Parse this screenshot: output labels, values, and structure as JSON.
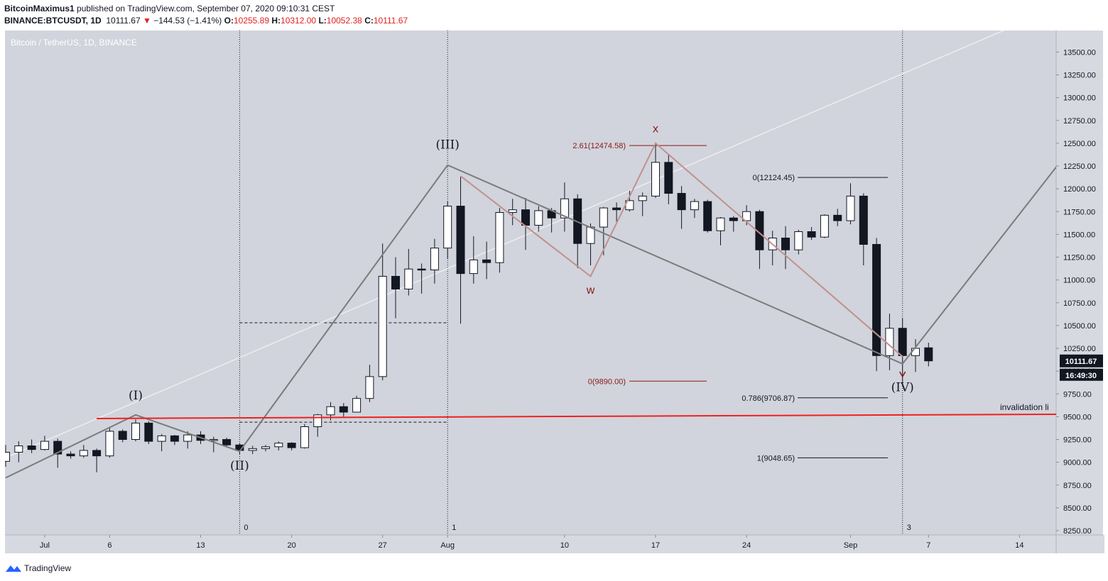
{
  "header": {
    "author": "BitcoinMaximus1",
    "published_text": "published on TradingView.com, September 07, 2020 09:10:31 CEST",
    "symbol": "BINANCE:BTCUSDT, 1D",
    "last": "10111.67",
    "change": "−144.53 (−1.41%)",
    "change_arrow": "▼",
    "o_label": "O:",
    "open": "10255.89",
    "h_label": "H:",
    "high": "10312.00",
    "l_label": "L:",
    "low": "10052.38",
    "c_label": "C:",
    "close": "10111.67"
  },
  "footer": {
    "brand": "TradingView",
    "icon": "tradingview-logo-icon"
  },
  "colors": {
    "plot_bg": "#d1d4dc",
    "candle_up": "#ffffff",
    "candle_down": "#131722",
    "wave_gray": "#7b7b7b",
    "wave_red": "#c0918f",
    "fib_red": "#8b1818",
    "invalidation_red": "#f02020",
    "last_price_bg": "#131722"
  },
  "chart_data": {
    "type": "candlestick",
    "title": "Bitcoin / TetherUS, 1D, BINANCE",
    "start_date": "2020-06-28",
    "ylim": [
      8250,
      13700
    ],
    "y_ticks": [
      "13500.00",
      "13250.00",
      "13000.00",
      "12750.00",
      "12500.00",
      "12250.00",
      "12000.00",
      "11750.00",
      "11500.00",
      "11250.00",
      "11000.00",
      "10750.00",
      "10500.00",
      "10250.00",
      "10000.00",
      "9750.00",
      "9500.00",
      "9250.00",
      "9000.00",
      "8750.00",
      "8500.00",
      "8250.00"
    ],
    "x_ticks": [
      {
        "label": "Jul",
        "date": "2020-07-01"
      },
      {
        "label": "6",
        "date": "2020-07-06"
      },
      {
        "label": "13",
        "date": "2020-07-13"
      },
      {
        "label": "20",
        "date": "2020-07-20"
      },
      {
        "label": "27",
        "date": "2020-07-27"
      },
      {
        "label": "Aug",
        "date": "2020-08-01"
      },
      {
        "label": "10",
        "date": "2020-08-10"
      },
      {
        "label": "17",
        "date": "2020-08-17"
      },
      {
        "label": "24",
        "date": "2020-08-24"
      },
      {
        "label": "Sep",
        "date": "2020-09-01"
      },
      {
        "label": "7",
        "date": "2020-09-07"
      },
      {
        "label": "14",
        "date": "2020-09-14"
      }
    ],
    "candles": [
      {
        "date": "2020-06-28",
        "o": 9010,
        "h": 9190,
        "l": 8950,
        "c": 9110
      },
      {
        "date": "2020-06-29",
        "o": 9110,
        "h": 9230,
        "l": 9000,
        "c": 9180
      },
      {
        "date": "2020-06-30",
        "o": 9180,
        "h": 9250,
        "l": 9100,
        "c": 9140
      },
      {
        "date": "2020-07-01",
        "o": 9140,
        "h": 9290,
        "l": 9130,
        "c": 9230
      },
      {
        "date": "2020-07-02",
        "o": 9230,
        "h": 9260,
        "l": 8940,
        "c": 9090
      },
      {
        "date": "2020-07-03",
        "o": 9090,
        "h": 9120,
        "l": 9040,
        "c": 9070
      },
      {
        "date": "2020-07-04",
        "o": 9070,
        "h": 9190,
        "l": 9050,
        "c": 9130
      },
      {
        "date": "2020-07-05",
        "o": 9130,
        "h": 9150,
        "l": 8890,
        "c": 9070
      },
      {
        "date": "2020-07-06",
        "o": 9070,
        "h": 9380,
        "l": 9050,
        "c": 9340
      },
      {
        "date": "2020-07-07",
        "o": 9340,
        "h": 9360,
        "l": 9220,
        "c": 9250
      },
      {
        "date": "2020-07-08",
        "o": 9250,
        "h": 9470,
        "l": 9230,
        "c": 9430
      },
      {
        "date": "2020-07-09",
        "o": 9430,
        "h": 9450,
        "l": 9200,
        "c": 9230
      },
      {
        "date": "2020-07-10",
        "o": 9230,
        "h": 9310,
        "l": 9120,
        "c": 9290
      },
      {
        "date": "2020-07-11",
        "o": 9290,
        "h": 9300,
        "l": 9190,
        "c": 9230
      },
      {
        "date": "2020-07-12",
        "o": 9230,
        "h": 9340,
        "l": 9150,
        "c": 9300
      },
      {
        "date": "2020-07-13",
        "o": 9300,
        "h": 9340,
        "l": 9200,
        "c": 9240
      },
      {
        "date": "2020-07-14",
        "o": 9240,
        "h": 9280,
        "l": 9110,
        "c": 9250
      },
      {
        "date": "2020-07-15",
        "o": 9250,
        "h": 9270,
        "l": 9170,
        "c": 9190
      },
      {
        "date": "2020-07-16",
        "o": 9190,
        "h": 9210,
        "l": 9090,
        "c": 9130
      },
      {
        "date": "2020-07-17",
        "o": 9130,
        "h": 9180,
        "l": 9090,
        "c": 9150
      },
      {
        "date": "2020-07-18",
        "o": 9150,
        "h": 9190,
        "l": 9120,
        "c": 9170
      },
      {
        "date": "2020-07-19",
        "o": 9170,
        "h": 9230,
        "l": 9130,
        "c": 9210
      },
      {
        "date": "2020-07-20",
        "o": 9210,
        "h": 9220,
        "l": 9130,
        "c": 9160
      },
      {
        "date": "2020-07-21",
        "o": 9160,
        "h": 9420,
        "l": 9150,
        "c": 9390
      },
      {
        "date": "2020-07-22",
        "o": 9390,
        "h": 9530,
        "l": 9280,
        "c": 9520
      },
      {
        "date": "2020-07-23",
        "o": 9520,
        "h": 9660,
        "l": 9460,
        "c": 9610
      },
      {
        "date": "2020-07-24",
        "o": 9610,
        "h": 9650,
        "l": 9500,
        "c": 9550
      },
      {
        "date": "2020-07-25",
        "o": 9550,
        "h": 9730,
        "l": 9550,
        "c": 9700
      },
      {
        "date": "2020-07-26",
        "o": 9700,
        "h": 10070,
        "l": 9660,
        "c": 9940
      },
      {
        "date": "2020-07-27",
        "o": 9940,
        "h": 11400,
        "l": 9900,
        "c": 11040
      },
      {
        "date": "2020-07-28",
        "o": 11040,
        "h": 11250,
        "l": 10580,
        "c": 10900
      },
      {
        "date": "2020-07-29",
        "o": 10900,
        "h": 11340,
        "l": 10830,
        "c": 11120
      },
      {
        "date": "2020-07-30",
        "o": 11120,
        "h": 11180,
        "l": 10850,
        "c": 11110
      },
      {
        "date": "2020-07-31",
        "o": 11110,
        "h": 11450,
        "l": 10960,
        "c": 11350
      },
      {
        "date": "2020-08-01",
        "o": 11350,
        "h": 11860,
        "l": 11230,
        "c": 11810
      },
      {
        "date": "2020-08-02",
        "o": 11810,
        "h": 12130,
        "l": 10520,
        "c": 11070
      },
      {
        "date": "2020-08-03",
        "o": 11070,
        "h": 11480,
        "l": 10960,
        "c": 11220
      },
      {
        "date": "2020-08-04",
        "o": 11220,
        "h": 11420,
        "l": 11010,
        "c": 11190
      },
      {
        "date": "2020-08-05",
        "o": 11190,
        "h": 11790,
        "l": 11080,
        "c": 11740
      },
      {
        "date": "2020-08-06",
        "o": 11740,
        "h": 11890,
        "l": 11600,
        "c": 11770
      },
      {
        "date": "2020-08-07",
        "o": 11770,
        "h": 11900,
        "l": 11330,
        "c": 11600
      },
      {
        "date": "2020-08-08",
        "o": 11600,
        "h": 11810,
        "l": 11530,
        "c": 11760
      },
      {
        "date": "2020-08-09",
        "o": 11760,
        "h": 11790,
        "l": 11520,
        "c": 11680
      },
      {
        "date": "2020-08-10",
        "o": 11680,
        "h": 12070,
        "l": 11530,
        "c": 11890
      },
      {
        "date": "2020-08-11",
        "o": 11890,
        "h": 11940,
        "l": 11130,
        "c": 11400
      },
      {
        "date": "2020-08-12",
        "o": 11400,
        "h": 11620,
        "l": 11160,
        "c": 11580
      },
      {
        "date": "2020-08-13",
        "o": 11580,
        "h": 11800,
        "l": 11270,
        "c": 11790
      },
      {
        "date": "2020-08-14",
        "o": 11790,
        "h": 11850,
        "l": 11640,
        "c": 11770
      },
      {
        "date": "2020-08-15",
        "o": 11770,
        "h": 11980,
        "l": 11750,
        "c": 11870
      },
      {
        "date": "2020-08-16",
        "o": 11870,
        "h": 11960,
        "l": 11700,
        "c": 11920
      },
      {
        "date": "2020-08-17",
        "o": 11920,
        "h": 12490,
        "l": 11900,
        "c": 12290
      },
      {
        "date": "2020-08-18",
        "o": 12290,
        "h": 12380,
        "l": 11830,
        "c": 11950
      },
      {
        "date": "2020-08-19",
        "o": 11950,
        "h": 12030,
        "l": 11560,
        "c": 11770
      },
      {
        "date": "2020-08-20",
        "o": 11770,
        "h": 11890,
        "l": 11680,
        "c": 11860
      },
      {
        "date": "2020-08-21",
        "o": 11860,
        "h": 11880,
        "l": 11520,
        "c": 11540
      },
      {
        "date": "2020-08-22",
        "o": 11540,
        "h": 11690,
        "l": 11380,
        "c": 11680
      },
      {
        "date": "2020-08-23",
        "o": 11680,
        "h": 11700,
        "l": 11530,
        "c": 11650
      },
      {
        "date": "2020-08-24",
        "o": 11650,
        "h": 11820,
        "l": 11600,
        "c": 11750
      },
      {
        "date": "2020-08-25",
        "o": 11750,
        "h": 11770,
        "l": 11120,
        "c": 11330
      },
      {
        "date": "2020-08-26",
        "o": 11330,
        "h": 11540,
        "l": 11160,
        "c": 11460
      },
      {
        "date": "2020-08-27",
        "o": 11460,
        "h": 11590,
        "l": 11120,
        "c": 11330
      },
      {
        "date": "2020-08-28",
        "o": 11330,
        "h": 11550,
        "l": 11280,
        "c": 11530
      },
      {
        "date": "2020-08-29",
        "o": 11530,
        "h": 11580,
        "l": 11440,
        "c": 11470
      },
      {
        "date": "2020-08-30",
        "o": 11470,
        "h": 11720,
        "l": 11460,
        "c": 11710
      },
      {
        "date": "2020-08-31",
        "o": 11710,
        "h": 11780,
        "l": 11590,
        "c": 11650
      },
      {
        "date": "2020-09-01",
        "o": 11650,
        "h": 12060,
        "l": 11610,
        "c": 11920
      },
      {
        "date": "2020-09-02",
        "o": 11920,
        "h": 11950,
        "l": 11160,
        "c": 11390
      },
      {
        "date": "2020-09-03",
        "o": 11390,
        "h": 11460,
        "l": 10000,
        "c": 10170
      },
      {
        "date": "2020-09-04",
        "o": 10170,
        "h": 10630,
        "l": 10010,
        "c": 10470
      },
      {
        "date": "2020-09-05",
        "o": 10470,
        "h": 10580,
        "l": 9880,
        "c": 10170
      },
      {
        "date": "2020-09-06",
        "o": 10170,
        "h": 10350,
        "l": 9990,
        "c": 10250
      },
      {
        "date": "2020-09-07",
        "o": 10256,
        "h": 10312,
        "l": 10052,
        "c": 10112
      }
    ],
    "wave_labels": [
      {
        "text": "(I)",
        "date": "2020-07-08",
        "price": 9690
      },
      {
        "text": "(II)",
        "date": "2020-07-16",
        "price": 8920
      },
      {
        "text": "(III)",
        "date": "2020-08-01",
        "price": 12440
      },
      {
        "text": "(IV)",
        "date": "2020-09-05",
        "price": 9780
      }
    ],
    "wave_path": [
      {
        "date": "2020-06-28",
        "price": 8830
      },
      {
        "date": "2020-07-08",
        "price": 9520
      },
      {
        "date": "2020-07-16",
        "price": 9120
      },
      {
        "date": "2020-08-01",
        "price": 12260
      },
      {
        "date": "2020-09-05",
        "price": 10080
      },
      {
        "date": "2020-09-17",
        "price": 12270
      }
    ],
    "red_path": [
      {
        "date": "2020-08-02",
        "price": 12140
      },
      {
        "date": "2020-08-12",
        "price": 11040
      },
      {
        "date": "2020-08-17",
        "price": 12500
      },
      {
        "date": "2020-09-05",
        "price": 10160
      }
    ],
    "red_labels": [
      {
        "text": "w",
        "date": "2020-08-12",
        "price": 10850
      },
      {
        "text": "x",
        "date": "2020-08-17",
        "price": 12620
      }
    ],
    "trend_line": [
      {
        "date": "2020-06-28",
        "price": 9050
      },
      {
        "date": "2020-09-13",
        "price": 13750
      }
    ],
    "invalidation": {
      "label": "invalidation li",
      "from": {
        "date": "2020-07-05",
        "price": 9480
      },
      "to": {
        "date": "2020-09-22",
        "price": 9530
      }
    },
    "fib_dark": [
      {
        "label": "0(12124.45)",
        "price": 12124.45
      },
      {
        "label": "0.786(9706.87)",
        "price": 9706.87
      },
      {
        "label": "1(9048.65)",
        "price": 9048.65
      }
    ],
    "fib_red": [
      {
        "label": "2.61(12474.58)",
        "price": 12474.58
      },
      {
        "label": "0(9890.00)",
        "price": 9890.0
      }
    ],
    "time_markers": [
      {
        "label": "0",
        "date": "2020-07-16"
      },
      {
        "label": "1",
        "date": "2020-08-01"
      },
      {
        "label": "3",
        "date": "2020-09-05"
      }
    ],
    "dashed_levels": [
      {
        "price": 10530,
        "from": "2020-07-16",
        "to": "2020-08-01"
      },
      {
        "price": 9440,
        "from": "2020-07-16",
        "to": "2020-08-01"
      }
    ],
    "last_price_label": "10111.67",
    "countdown_label": "16:49:30"
  }
}
